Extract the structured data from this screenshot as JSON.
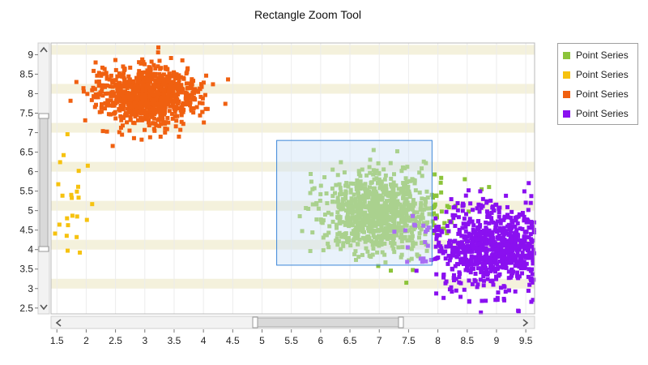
{
  "title": "Rectangle Zoom Tool",
  "legend": {
    "placement": "right",
    "items": [
      {
        "label": "Point Series",
        "color": "#8cc43a"
      },
      {
        "label": "Point Series",
        "color": "#f6c20f"
      },
      {
        "label": "Point Series",
        "color": "#f06010"
      },
      {
        "label": "Point Series",
        "color": "#8a10f0"
      }
    ]
  },
  "scrollbars": {
    "horizontal": {
      "left_icon": "chevron-left-icon",
      "right_icon": "chevron-right-icon"
    },
    "vertical": {
      "up_icon": "chevron-up-icon",
      "down_icon": "chevron-down-icon"
    }
  },
  "zoom_rectangle": {
    "x": [
      5.25,
      7.9
    ],
    "y": [
      3.6,
      6.8
    ]
  },
  "chart_data": {
    "type": "scatter",
    "title": "Rectangle Zoom Tool",
    "xlabel": "",
    "ylabel": "",
    "xlim": [
      1.4,
      9.65
    ],
    "ylim": [
      2.35,
      9.3
    ],
    "x_ticks": [
      "1.5",
      "2",
      "2.5",
      "3",
      "3.5",
      "4",
      "4.5",
      "5",
      "5.5",
      "6",
      "6.5",
      "7",
      "7.5",
      "8",
      "8.5",
      "9",
      "9.5"
    ],
    "y_ticks": [
      "2.5",
      "3",
      "3.5",
      "4",
      "4.5",
      "5",
      "5.5",
      "6",
      "6.5",
      "7",
      "7.5",
      "8",
      "8.5",
      "9"
    ],
    "grid": "horizontal alternating bands",
    "series": [
      {
        "name": "Point Series",
        "color": "#8cc43a",
        "cluster": {
          "center": [
            7.0,
            4.95
          ],
          "spread": [
            0.5,
            0.55
          ],
          "count": 900
        }
      },
      {
        "name": "Point Series",
        "color": "#f6c20f",
        "cluster": {
          "center": [
            1.75,
            4.9
          ],
          "spread": [
            0.2,
            0.7
          ],
          "count": 25
        }
      },
      {
        "name": "Point Series",
        "color": "#f06010",
        "cluster": {
          "center": [
            3.05,
            7.95
          ],
          "spread": [
            0.42,
            0.38
          ],
          "count": 900
        }
      },
      {
        "name": "Point Series",
        "color": "#8a10f0",
        "cluster": {
          "center": [
            9.0,
            4.05
          ],
          "spread": [
            0.55,
            0.55
          ],
          "count": 900
        }
      }
    ]
  }
}
